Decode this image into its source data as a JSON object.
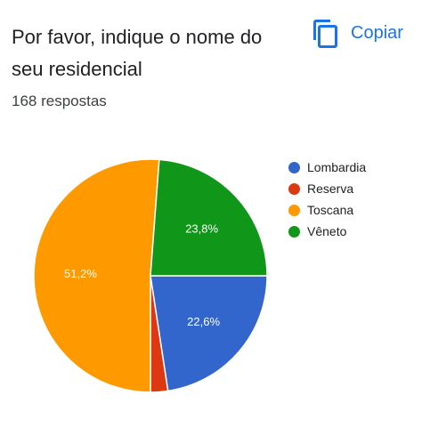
{
  "question": {
    "title": "Por favor, indique o nome do seu residencial",
    "responses": "168 respostas"
  },
  "toolbar": {
    "copy_label": "Copiar",
    "copy_icon": "copy-icon",
    "accent": "#1a73e8"
  },
  "chart_data": {
    "type": "pie",
    "categories": [
      "Lombardia",
      "Reserva",
      "Toscana",
      "Vêneto"
    ],
    "values": [
      22.6,
      2.4,
      51.2,
      23.8
    ],
    "labels": [
      "22,6%",
      "",
      "51,2%",
      "23,8%"
    ],
    "colors": [
      "#3366cc",
      "#dc3912",
      "#ff9900",
      "#109618"
    ],
    "legend_position": "right"
  }
}
